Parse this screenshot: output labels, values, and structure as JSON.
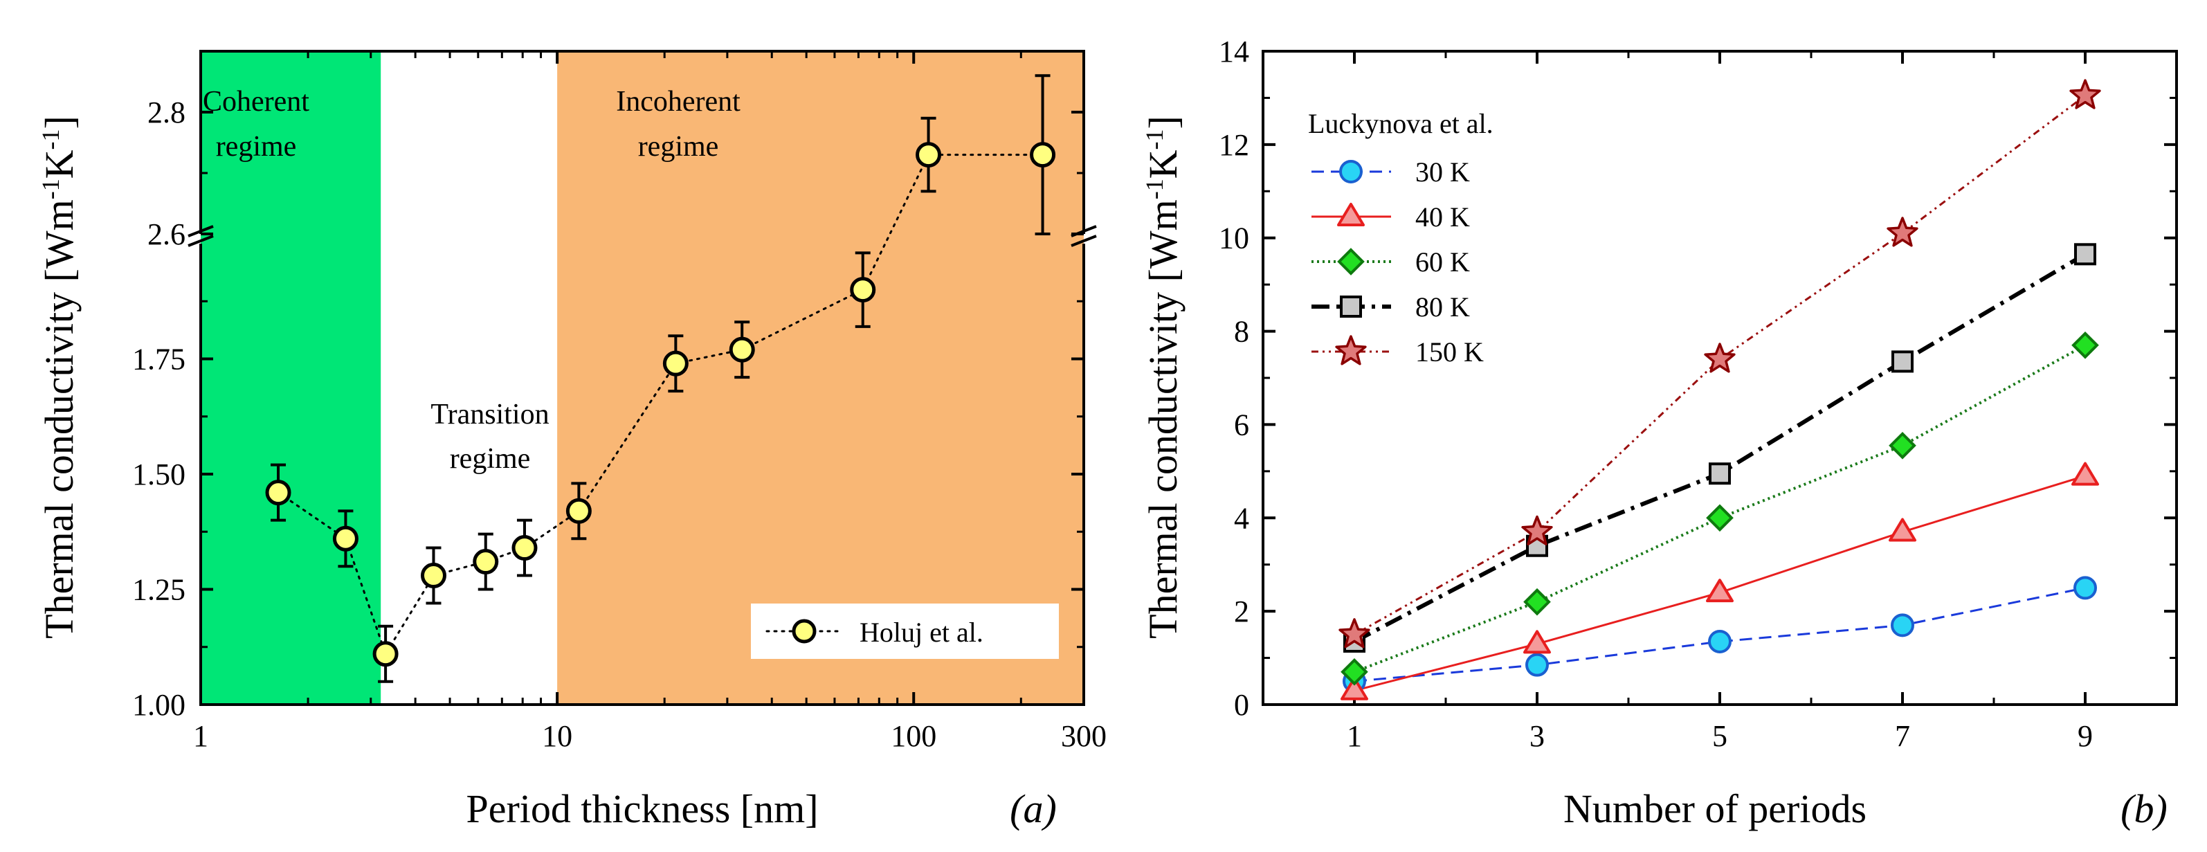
{
  "chart_data": [
    {
      "type": "scatter",
      "panel_label": "(a)",
      "xscale": "log",
      "xlabel": "Period thickness [nm]",
      "ylabel_parts": [
        "Thermal conductivity [Wm",
        "-1",
        "K",
        "-1",
        "]"
      ],
      "xlim": [
        1,
        300
      ],
      "ylim_lower": [
        1.0,
        2.0
      ],
      "ylim_upper": [
        2.6,
        2.9
      ],
      "axis_break": true,
      "xticks": [
        1,
        10,
        100,
        300
      ],
      "xtick_labels": [
        "1",
        "10",
        "100",
        "300"
      ],
      "yticks_lower": [
        1.0,
        1.25,
        1.5,
        1.75
      ],
      "ytick_labels_lower": [
        "1.00",
        "1.25",
        "1.50",
        "1.75"
      ],
      "yticks_upper": [
        2.6,
        2.8
      ],
      "ytick_labels_upper": [
        "2.6",
        "2.8"
      ],
      "regions": [
        {
          "name": "coherent",
          "lines": [
            "Coherent",
            "regime"
          ],
          "x_range": [
            1,
            3.2
          ],
          "color": "#00e676"
        },
        {
          "name": "transition",
          "lines": [
            "Transition",
            "regime"
          ],
          "x_range": [
            3.2,
            10
          ],
          "color": "#ffffff"
        },
        {
          "name": "incoherent",
          "lines": [
            "Incoherent",
            "regime"
          ],
          "x_range": [
            10,
            300
          ],
          "color": "#f9b775"
        }
      ],
      "series": [
        {
          "name": "Holuj et al.",
          "marker": "circle",
          "marker_color": "#ffff80",
          "line_style": "dotted",
          "x": [
            1.65,
            2.55,
            3.3,
            4.5,
            6.3,
            8.1,
            11.5,
            21.5,
            33,
            72,
            110,
            230
          ],
          "y": [
            1.46,
            1.36,
            1.11,
            1.28,
            1.31,
            1.34,
            1.42,
            1.74,
            1.77,
            1.9,
            2.73,
            2.73
          ],
          "yerr": [
            0.06,
            0.06,
            0.06,
            0.06,
            0.06,
            0.06,
            0.06,
            0.06,
            0.06,
            0.08,
            0.06,
            0.13
          ]
        }
      ],
      "legend_position": "bottom-right"
    },
    {
      "type": "line",
      "panel_label": "(b)",
      "xlabel": "Number of periods",
      "ylabel_parts": [
        "Thermal conductivity [Wm",
        "-1",
        "K",
        "-1",
        "]"
      ],
      "xlim": [
        0,
        10
      ],
      "ylim": [
        0,
        14
      ],
      "xticks": [
        1,
        3,
        5,
        7,
        9
      ],
      "xtick_labels": [
        "1",
        "3",
        "5",
        "7",
        "9"
      ],
      "yticks": [
        0,
        2,
        4,
        6,
        8,
        10,
        12,
        14
      ],
      "ytick_labels": [
        "0",
        "2",
        "4",
        "6",
        "8",
        "10",
        "12",
        "14"
      ],
      "legend_title": "Luckynova et al.",
      "legend_position": "top-left",
      "x": [
        1,
        3,
        5,
        7,
        9
      ],
      "series": [
        {
          "name": "30 K",
          "values": [
            0.5,
            0.85,
            1.35,
            1.7,
            2.5
          ],
          "line_color": "#1a3adb",
          "dash": "18 10",
          "line_width": 3,
          "marker": "circle",
          "marker_fill": "#29d4f5",
          "marker_stroke": "#1a60d0"
        },
        {
          "name": "40 K",
          "values": [
            0.3,
            1.3,
            2.4,
            3.7,
            4.9
          ],
          "line_color": "#e81f1f",
          "dash": "",
          "line_width": 3,
          "marker": "triangle",
          "marker_fill": "#f59a9a",
          "marker_stroke": "#e81f1f"
        },
        {
          "name": "60 K",
          "values": [
            0.7,
            2.2,
            4.0,
            5.55,
            7.7
          ],
          "line_color": "#1a7a1a",
          "dash": "3 5",
          "line_width": 4,
          "marker": "diamond",
          "marker_fill": "#22e022",
          "marker_stroke": "#0e7a0e"
        },
        {
          "name": "80 K",
          "values": [
            1.35,
            3.4,
            4.95,
            7.35,
            9.65
          ],
          "line_color": "#000000",
          "dash": "26 10 5 10",
          "line_width": 6,
          "marker": "square",
          "marker_fill": "#c8c8c8",
          "marker_stroke": "#000000"
        },
        {
          "name": "150 K",
          "values": [
            1.5,
            3.7,
            7.4,
            10.1,
            13.05
          ],
          "line_color": "#9b1010",
          "dash": "10 6 3 6 3 6",
          "line_width": 3,
          "marker": "star",
          "marker_fill": "#e07a7a",
          "marker_stroke": "#8b0000"
        }
      ]
    }
  ]
}
